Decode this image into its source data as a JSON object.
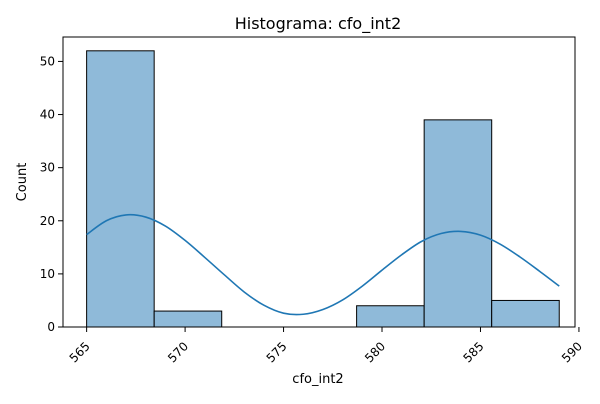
{
  "chart_data": {
    "type": "bar",
    "title": "Histograma: cfo_int2",
    "xlabel": "cfo_int2",
    "ylabel": "Count",
    "xlim": [
      563.8,
      589.8
    ],
    "ylim": [
      0,
      54.6
    ],
    "xticks": [
      565,
      570,
      575,
      580,
      585,
      590
    ],
    "yticks": [
      0,
      10,
      20,
      30,
      40,
      50
    ],
    "bins": [
      {
        "x0": 565.0,
        "x1": 568.43,
        "count": 52
      },
      {
        "x0": 568.43,
        "x1": 571.86,
        "count": 3
      },
      {
        "x0": 571.86,
        "x1": 575.29,
        "count": 0
      },
      {
        "x0": 575.29,
        "x1": 578.71,
        "count": 0
      },
      {
        "x0": 578.71,
        "x1": 582.14,
        "count": 4
      },
      {
        "x0": 582.14,
        "x1": 585.57,
        "count": 39
      },
      {
        "x0": 585.57,
        "x1": 589.0,
        "count": 5
      }
    ],
    "kde": {
      "x": [
        565,
        566,
        567,
        568,
        569,
        570,
        571,
        572,
        573,
        574,
        575,
        576,
        577,
        578,
        579,
        580,
        581,
        582,
        583,
        584,
        585,
        586,
        587,
        588,
        589
      ],
      "y": [
        17.4,
        20.0,
        21.1,
        20.7,
        19.0,
        16.3,
        13.1,
        9.8,
        6.6,
        4.1,
        2.6,
        2.4,
        3.3,
        5.1,
        7.7,
        10.7,
        13.6,
        16.1,
        17.6,
        18.0,
        17.3,
        15.6,
        13.2,
        10.5,
        7.7
      ]
    },
    "colors": {
      "bar_fill": "#8fbad9",
      "bar_edge": "#000000",
      "kde_line": "#1f77b4"
    },
    "grid": false,
    "legend": "none"
  }
}
